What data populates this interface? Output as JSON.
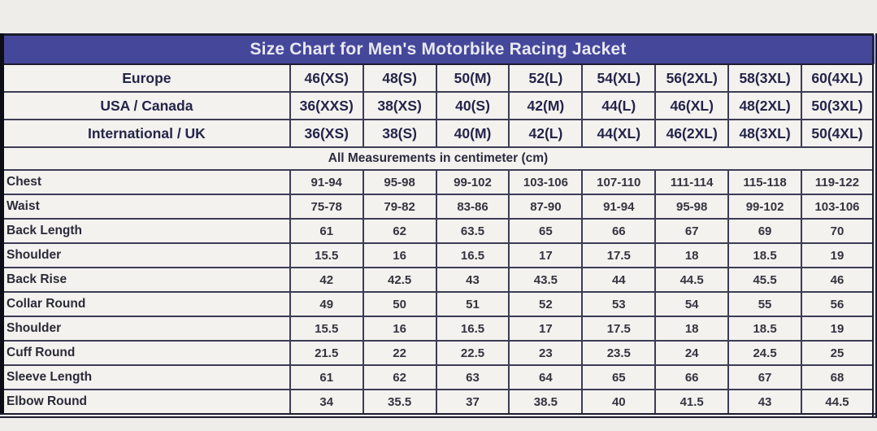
{
  "colors": {
    "page_background": "#efede9",
    "title_bar_background": "#45479a",
    "title_text": "#e8e8f2",
    "cell_background": "#f4f2ef",
    "grid_line": "#3c3c55",
    "header_text": "#24244a",
    "value_text": "#34343f"
  },
  "chart_data": {
    "type": "table",
    "title": "Size Chart for Men's Motorbike Racing Jacket",
    "units_note": "All Measurements in centimeter (cm)",
    "size_system_rows": [
      {
        "label": "Europe",
        "values": [
          "46(XS)",
          "48(S)",
          "50(M)",
          "52(L)",
          "54(XL)",
          "56(2XL)",
          "58(3XL)",
          "60(4XL)"
        ]
      },
      {
        "label": "USA / Canada",
        "values": [
          "36(XXS)",
          "38(XS)",
          "40(S)",
          "42(M)",
          "44(L)",
          "46(XL)",
          "48(2XL)",
          "50(3XL)"
        ]
      },
      {
        "label": "International / UK",
        "values": [
          "36(XS)",
          "38(S)",
          "40(M)",
          "42(L)",
          "44(XL)",
          "46(2XL)",
          "48(3XL)",
          "50(4XL)"
        ]
      }
    ],
    "measurement_rows": [
      {
        "label": "Chest",
        "values": [
          "91-94",
          "95-98",
          "99-102",
          "103-106",
          "107-110",
          "111-114",
          "115-118",
          "119-122"
        ]
      },
      {
        "label": "Waist",
        "values": [
          "75-78",
          "79-82",
          "83-86",
          "87-90",
          "91-94",
          "95-98",
          "99-102",
          "103-106"
        ]
      },
      {
        "label": "Back Length",
        "values": [
          "61",
          "62",
          "63.5",
          "65",
          "66",
          "67",
          "69",
          "70"
        ]
      },
      {
        "label": "Shoulder",
        "values": [
          "15.5",
          "16",
          "16.5",
          "17",
          "17.5",
          "18",
          "18.5",
          "19"
        ]
      },
      {
        "label": "Back Rise",
        "values": [
          "42",
          "42.5",
          "43",
          "43.5",
          "44",
          "44.5",
          "45.5",
          "46"
        ]
      },
      {
        "label": "Collar Round",
        "values": [
          "49",
          "50",
          "51",
          "52",
          "53",
          "54",
          "55",
          "56"
        ]
      },
      {
        "label": "Shoulder",
        "values": [
          "15.5",
          "16",
          "16.5",
          "17",
          "17.5",
          "18",
          "18.5",
          "19"
        ]
      },
      {
        "label": "Cuff Round",
        "values": [
          "21.5",
          "22",
          "22.5",
          "23",
          "23.5",
          "24",
          "24.5",
          "25"
        ]
      },
      {
        "label": "Sleeve Length",
        "values": [
          "61",
          "62",
          "63",
          "64",
          "65",
          "66",
          "67",
          "68"
        ]
      },
      {
        "label": "Elbow Round",
        "values": [
          "34",
          "35.5",
          "37",
          "38.5",
          "40",
          "41.5",
          "43",
          "44.5"
        ]
      }
    ]
  }
}
